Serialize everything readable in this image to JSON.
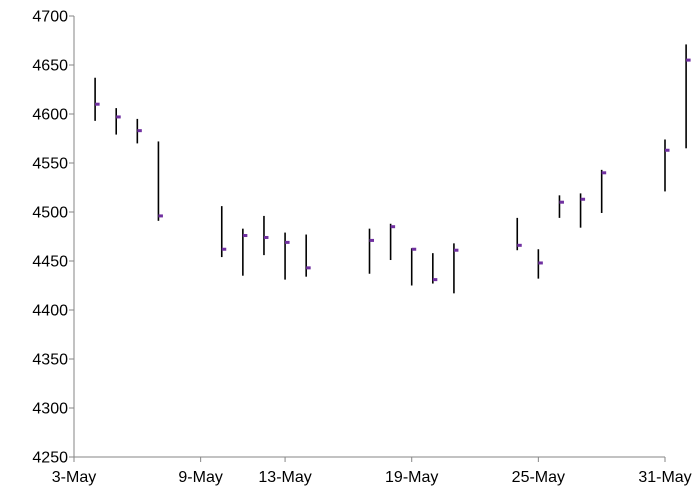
{
  "chart_data": {
    "type": "hlc",
    "title": "",
    "xlabel": "",
    "ylabel": "",
    "ylim": [
      4250,
      4700
    ],
    "y_tick_step": 50,
    "y_ticks": [
      "4250",
      "4300",
      "4350",
      "4400",
      "4450",
      "4500",
      "4550",
      "4600",
      "4650",
      "4700"
    ],
    "x_ticks": [
      {
        "date": "2021-05-03",
        "label": "3-May"
      },
      {
        "date": "2021-05-09",
        "label": "9-May"
      },
      {
        "date": "2021-05-13",
        "label": "13-May"
      },
      {
        "date": "2021-05-19",
        "label": "19-May"
      },
      {
        "date": "2021-05-25",
        "label": "25-May"
      },
      {
        "date": "2021-05-31",
        "label": "31-May"
      }
    ],
    "xlim": [
      "2021-05-03",
      "2021-05-31"
    ],
    "grid": false,
    "legend": "none",
    "colors": {
      "range_line": "#000000",
      "close_marker": "#7030a0",
      "axis": "#868686"
    },
    "series": [
      {
        "date": "2021-05-04",
        "high": 4637,
        "low": 4593,
        "close": 4610
      },
      {
        "date": "2021-05-05",
        "high": 4606,
        "low": 4579,
        "close": 4597
      },
      {
        "date": "2021-05-06",
        "high": 4595,
        "low": 4570,
        "close": 4583
      },
      {
        "date": "2021-05-07",
        "high": 4572,
        "low": 4491,
        "close": 4496
      },
      {
        "date": "2021-05-10",
        "high": 4506,
        "low": 4454,
        "close": 4462
      },
      {
        "date": "2021-05-11",
        "high": 4483,
        "low": 4435,
        "close": 4476
      },
      {
        "date": "2021-05-12",
        "high": 4496,
        "low": 4456,
        "close": 4474
      },
      {
        "date": "2021-05-13",
        "high": 4479,
        "low": 4431,
        "close": 4469
      },
      {
        "date": "2021-05-14",
        "high": 4477,
        "low": 4434,
        "close": 4443
      },
      {
        "date": "2021-05-17",
        "high": 4483,
        "low": 4437,
        "close": 4471
      },
      {
        "date": "2021-05-18",
        "high": 4488,
        "low": 4451,
        "close": 4485
      },
      {
        "date": "2021-05-19",
        "high": 4463,
        "low": 4425,
        "close": 4462
      },
      {
        "date": "2021-05-20",
        "high": 4458,
        "low": 4427,
        "close": 4431
      },
      {
        "date": "2021-05-21",
        "high": 4468,
        "low": 4417,
        "close": 4461
      },
      {
        "date": "2021-05-24",
        "high": 4494,
        "low": 4461,
        "close": 4466
      },
      {
        "date": "2021-05-25",
        "high": 4462,
        "low": 4432,
        "close": 4448
      },
      {
        "date": "2021-05-26",
        "high": 4517,
        "low": 4494,
        "close": 4510
      },
      {
        "date": "2021-05-27",
        "high": 4519,
        "low": 4484,
        "close": 4513
      },
      {
        "date": "2021-05-28",
        "high": 4543,
        "low": 4499,
        "close": 4540
      },
      {
        "date": "2021-05-31",
        "high": 4574,
        "low": 4521,
        "close": 4563
      },
      {
        "date": "2021-06-01",
        "high": 4671,
        "low": 4565,
        "close": 4655
      }
    ]
  }
}
